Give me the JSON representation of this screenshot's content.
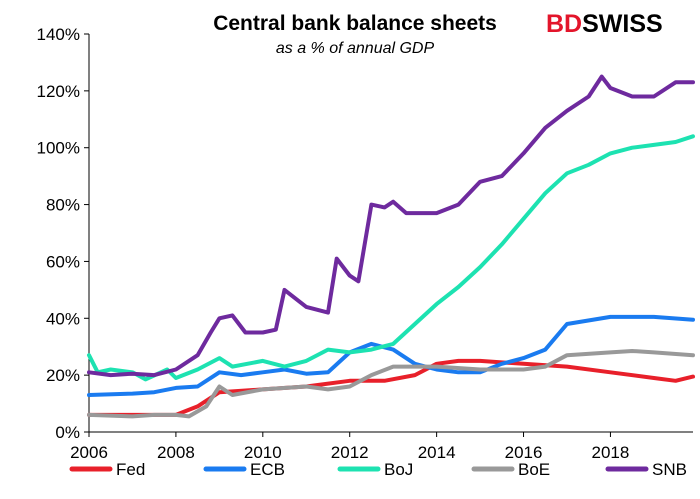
{
  "logo": {
    "bd": "BD",
    "swiss": "SWISS",
    "color": "#e3152b"
  },
  "chart_data": {
    "type": "line",
    "title": "Central bank balance sheets",
    "subtitle": "as a % of annual GDP",
    "xlim": [
      2006,
      2019.9
    ],
    "ylim": [
      0,
      140
    ],
    "x_ticks": [
      2006,
      2008,
      2010,
      2012,
      2014,
      2016,
      2018
    ],
    "y_ticks": [
      0,
      20,
      40,
      60,
      80,
      100,
      120,
      140
    ],
    "y_tick_labels": [
      "0%",
      "20%",
      "40%",
      "60%",
      "80%",
      "100%",
      "120%",
      "140%"
    ],
    "grid": false,
    "legend": "bottom",
    "series": [
      {
        "name": "Fed",
        "color": "#e8202a",
        "x": [
          2006,
          2007,
          2008,
          2008.5,
          2009,
          2010,
          2011,
          2012,
          2012.8,
          2013.5,
          2014,
          2014.5,
          2015,
          2016,
          2017,
          2018,
          2019,
          2019.5,
          2019.9
        ],
        "y": [
          6,
          6,
          6,
          9,
          14,
          15,
          16,
          18,
          18,
          20,
          24,
          25,
          25,
          24,
          23,
          21,
          19,
          18,
          19.5
        ]
      },
      {
        "name": "ECB",
        "color": "#1a7bf0",
        "x": [
          2006,
          2007,
          2007.5,
          2008,
          2008.5,
          2009,
          2009.5,
          2010,
          2010.5,
          2011,
          2011.5,
          2012,
          2012.5,
          2013,
          2013.5,
          2014,
          2014.5,
          2015,
          2015.5,
          2016,
          2016.5,
          2017,
          2018,
          2019,
          2019.9
        ],
        "y": [
          13,
          13.5,
          14,
          15.5,
          16,
          21,
          20,
          21,
          22,
          20.5,
          21,
          28,
          31,
          29,
          24,
          22,
          21,
          21,
          24,
          26,
          29,
          38,
          40.5,
          40.5,
          39.5
        ]
      },
      {
        "name": "BoJ",
        "color": "#1de2b1",
        "x": [
          2006,
          2006.2,
          2006.5,
          2007,
          2007.3,
          2007.8,
          2008,
          2008.5,
          2009,
          2009.3,
          2010,
          2010.5,
          2011,
          2011.5,
          2012,
          2012.5,
          2013,
          2013.5,
          2014,
          2014.5,
          2015,
          2015.5,
          2016,
          2016.5,
          2017,
          2017.5,
          2018,
          2018.5,
          2019,
          2019.5,
          2019.9
        ],
        "y": [
          27,
          21,
          22,
          21,
          18.5,
          22,
          19,
          22,
          26,
          23,
          25,
          23,
          25,
          29,
          28,
          29,
          31,
          38,
          45,
          51,
          58,
          66,
          75,
          84,
          91,
          94,
          98,
          100,
          101,
          102,
          104
        ]
      },
      {
        "name": "BoE",
        "color": "#999999",
        "x": [
          2006,
          2007,
          2007.5,
          2008,
          2008.3,
          2008.7,
          2009,
          2009.3,
          2010,
          2011,
          2011.5,
          2012,
          2012.5,
          2013,
          2014,
          2015,
          2016,
          2016.5,
          2017,
          2018,
          2018.5,
          2019,
          2019.9
        ],
        "y": [
          6,
          5.5,
          6,
          6,
          5.5,
          9,
          16,
          13,
          15,
          16,
          15,
          16,
          20,
          23,
          23,
          22,
          22,
          23,
          27,
          28,
          28.5,
          28,
          27
        ]
      },
      {
        "name": "SNB",
        "color": "#6e2a9e",
        "x": [
          2006,
          2006.5,
          2007,
          2007.5,
          2008,
          2008.5,
          2008.8,
          2009,
          2009.3,
          2009.6,
          2010,
          2010.3,
          2010.5,
          2011,
          2011.5,
          2011.7,
          2012,
          2012.2,
          2012.5,
          2012.8,
          2013,
          2013.3,
          2013.8,
          2014,
          2014.5,
          2015,
          2015.5,
          2016,
          2016.5,
          2017,
          2017.5,
          2017.8,
          2018,
          2018.5,
          2019,
          2019.5,
          2019.9
        ],
        "y": [
          21,
          20,
          20.5,
          20,
          22,
          27,
          35,
          40,
          41,
          35,
          35,
          36,
          50,
          44,
          42,
          61,
          55,
          53,
          80,
          79,
          81,
          77,
          77,
          77,
          80,
          88,
          90,
          98,
          107,
          113,
          118,
          125,
          121,
          118,
          118,
          123,
          123
        ]
      }
    ]
  }
}
